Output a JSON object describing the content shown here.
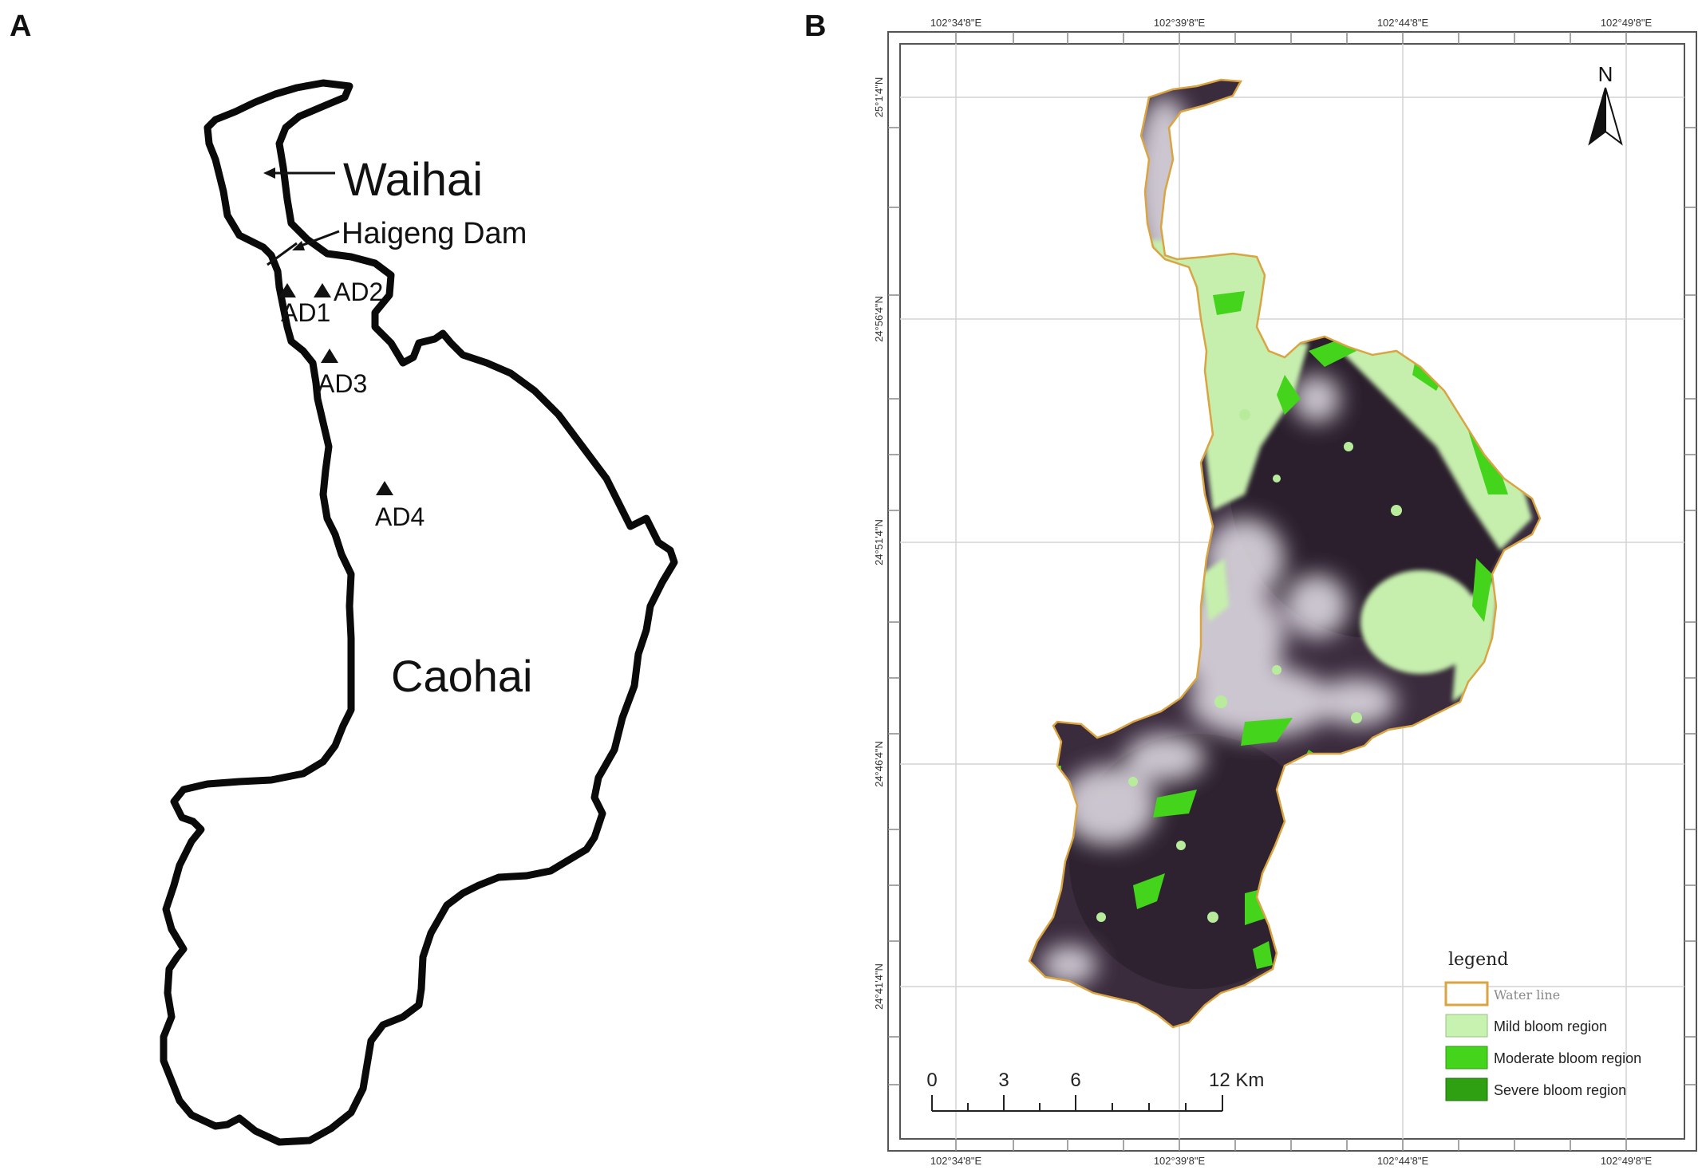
{
  "panels": {
    "a": {
      "label": "A",
      "labels": {
        "waihai": "Waihai",
        "dam": "Haigeng Dam",
        "caohai": "Caohai"
      },
      "sites": [
        "AD1",
        "AD2",
        "AD3",
        "AD4"
      ]
    },
    "b": {
      "label": "B",
      "north": "N",
      "lon_ticks": [
        "102°34'8\"E",
        "102°39'8\"E",
        "102°44'8\"E",
        "102°49'8\"E"
      ],
      "lat_ticks": [
        "25°1'4\"N",
        "24°56'4\"N",
        "24°51'4\"N",
        "24°46'4\"N",
        "24°41'4\"N"
      ],
      "legend": {
        "title": "legend",
        "items": [
          {
            "label": "Water line",
            "color": "#d9a441"
          },
          {
            "label": "Mild  bloom region",
            "color": "#c8f2b0"
          },
          {
            "label": "Moderate bloom region",
            "color": "#44d41c"
          },
          {
            "label": "Severe  bloom region",
            "color": "#2ea012"
          }
        ]
      },
      "scale": {
        "ticks": [
          "0",
          "3",
          "6",
          "12 Km"
        ]
      }
    }
  }
}
